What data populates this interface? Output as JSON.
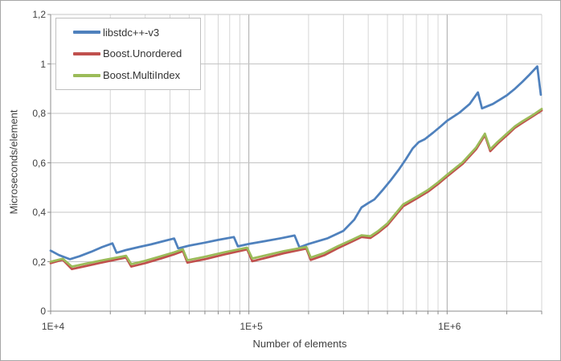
{
  "chart_data": {
    "type": "line",
    "title": "",
    "xlabel": "Number of elements",
    "ylabel": "Microseconds/element",
    "x_scale": "log",
    "xlim": [
      10000,
      3000000
    ],
    "ylim": [
      0,
      1.2
    ],
    "grid": true,
    "legend_position": "top-left",
    "x_ticks": [
      {
        "label": "1E+4",
        "value": 10000
      },
      {
        "label": "1E+5",
        "value": 100000
      },
      {
        "label": "1E+6",
        "value": 1000000
      }
    ],
    "y_ticks": [
      {
        "label": "0",
        "value": 0
      },
      {
        "label": "0,2",
        "value": 0.2
      },
      {
        "label": "0,4",
        "value": 0.4
      },
      {
        "label": "0,6",
        "value": 0.6
      },
      {
        "label": "0,8",
        "value": 0.8
      },
      {
        "label": "1",
        "value": 1
      },
      {
        "label": "1,2",
        "value": 1.2
      }
    ],
    "series": [
      {
        "name": "libstdc++-v3",
        "color": "#4F81BD",
        "points": [
          [
            10000,
            0.245
          ],
          [
            11000,
            0.227
          ],
          [
            12500,
            0.21
          ],
          [
            14000,
            0.222
          ],
          [
            16000,
            0.24
          ],
          [
            18000,
            0.258
          ],
          [
            20500,
            0.274
          ],
          [
            21500,
            0.236
          ],
          [
            24000,
            0.247
          ],
          [
            28000,
            0.26
          ],
          [
            32000,
            0.27
          ],
          [
            37000,
            0.283
          ],
          [
            42000,
            0.294
          ],
          [
            44000,
            0.254
          ],
          [
            50000,
            0.265
          ],
          [
            60000,
            0.277
          ],
          [
            70000,
            0.288
          ],
          [
            84000,
            0.3
          ],
          [
            88000,
            0.262
          ],
          [
            100000,
            0.272
          ],
          [
            120000,
            0.283
          ],
          [
            145000,
            0.295
          ],
          [
            170000,
            0.306
          ],
          [
            180000,
            0.258
          ],
          [
            200000,
            0.272
          ],
          [
            250000,
            0.295
          ],
          [
            300000,
            0.325
          ],
          [
            340000,
            0.37
          ],
          [
            370000,
            0.42
          ],
          [
            400000,
            0.437
          ],
          [
            430000,
            0.452
          ],
          [
            470000,
            0.487
          ],
          [
            520000,
            0.53
          ],
          [
            570000,
            0.572
          ],
          [
            620000,
            0.615
          ],
          [
            670000,
            0.658
          ],
          [
            720000,
            0.684
          ],
          [
            770000,
            0.695
          ],
          [
            850000,
            0.722
          ],
          [
            930000,
            0.748
          ],
          [
            1000000,
            0.77
          ],
          [
            1150000,
            0.802
          ],
          [
            1300000,
            0.838
          ],
          [
            1430000,
            0.885
          ],
          [
            1500000,
            0.82
          ],
          [
            1700000,
            0.838
          ],
          [
            1850000,
            0.856
          ],
          [
            2000000,
            0.873
          ],
          [
            2200000,
            0.9
          ],
          [
            2400000,
            0.928
          ],
          [
            2600000,
            0.956
          ],
          [
            2850000,
            0.99
          ],
          [
            2970000,
            0.875
          ]
        ]
      },
      {
        "name": "Boost.Unordered",
        "color": "#C0504D",
        "points": [
          [
            10000,
            0.194
          ],
          [
            11500,
            0.208
          ],
          [
            12800,
            0.17
          ],
          [
            15000,
            0.182
          ],
          [
            18000,
            0.196
          ],
          [
            21000,
            0.207
          ],
          [
            24000,
            0.217
          ],
          [
            25500,
            0.18
          ],
          [
            30000,
            0.194
          ],
          [
            36000,
            0.213
          ],
          [
            42000,
            0.23
          ],
          [
            46500,
            0.243
          ],
          [
            49000,
            0.196
          ],
          [
            60000,
            0.21
          ],
          [
            75000,
            0.229
          ],
          [
            98000,
            0.25
          ],
          [
            104000,
            0.202
          ],
          [
            125000,
            0.218
          ],
          [
            150000,
            0.234
          ],
          [
            195000,
            0.253
          ],
          [
            205000,
            0.207
          ],
          [
            240000,
            0.226
          ],
          [
            280000,
            0.254
          ],
          [
            330000,
            0.281
          ],
          [
            370000,
            0.3
          ],
          [
            410000,
            0.296
          ],
          [
            450000,
            0.318
          ],
          [
            500000,
            0.348
          ],
          [
            600000,
            0.424
          ],
          [
            700000,
            0.455
          ],
          [
            800000,
            0.483
          ],
          [
            900000,
            0.514
          ],
          [
            1000000,
            0.545
          ],
          [
            1200000,
            0.596
          ],
          [
            1400000,
            0.655
          ],
          [
            1550000,
            0.712
          ],
          [
            1650000,
            0.647
          ],
          [
            1800000,
            0.678
          ],
          [
            2000000,
            0.711
          ],
          [
            2200000,
            0.742
          ],
          [
            2400000,
            0.762
          ],
          [
            2700000,
            0.788
          ],
          [
            3000000,
            0.812
          ]
        ]
      },
      {
        "name": "Boost.MultiIndex",
        "color": "#9BBB59",
        "points": [
          [
            10000,
            0.2
          ],
          [
            11500,
            0.212
          ],
          [
            12800,
            0.18
          ],
          [
            15000,
            0.192
          ],
          [
            18000,
            0.205
          ],
          [
            21000,
            0.215
          ],
          [
            24000,
            0.224
          ],
          [
            25500,
            0.19
          ],
          [
            30000,
            0.204
          ],
          [
            36000,
            0.222
          ],
          [
            42000,
            0.238
          ],
          [
            46500,
            0.25
          ],
          [
            49000,
            0.206
          ],
          [
            60000,
            0.22
          ],
          [
            75000,
            0.238
          ],
          [
            98000,
            0.257
          ],
          [
            104000,
            0.213
          ],
          [
            125000,
            0.228
          ],
          [
            150000,
            0.243
          ],
          [
            195000,
            0.26
          ],
          [
            205000,
            0.217
          ],
          [
            240000,
            0.235
          ],
          [
            280000,
            0.262
          ],
          [
            330000,
            0.288
          ],
          [
            370000,
            0.307
          ],
          [
            410000,
            0.303
          ],
          [
            450000,
            0.325
          ],
          [
            500000,
            0.355
          ],
          [
            600000,
            0.432
          ],
          [
            700000,
            0.462
          ],
          [
            800000,
            0.49
          ],
          [
            900000,
            0.521
          ],
          [
            1000000,
            0.552
          ],
          [
            1200000,
            0.603
          ],
          [
            1400000,
            0.662
          ],
          [
            1550000,
            0.718
          ],
          [
            1650000,
            0.655
          ],
          [
            1800000,
            0.685
          ],
          [
            2000000,
            0.718
          ],
          [
            2200000,
            0.748
          ],
          [
            2400000,
            0.768
          ],
          [
            2700000,
            0.793
          ],
          [
            3000000,
            0.818
          ]
        ]
      }
    ],
    "colors": {
      "grid_minor": "#d6d6d6",
      "grid_major": "#a8a8a8",
      "grid_horizontal": "#c4c4c4",
      "axis": "#8c8c8c",
      "text": "#3f3f3f"
    }
  }
}
